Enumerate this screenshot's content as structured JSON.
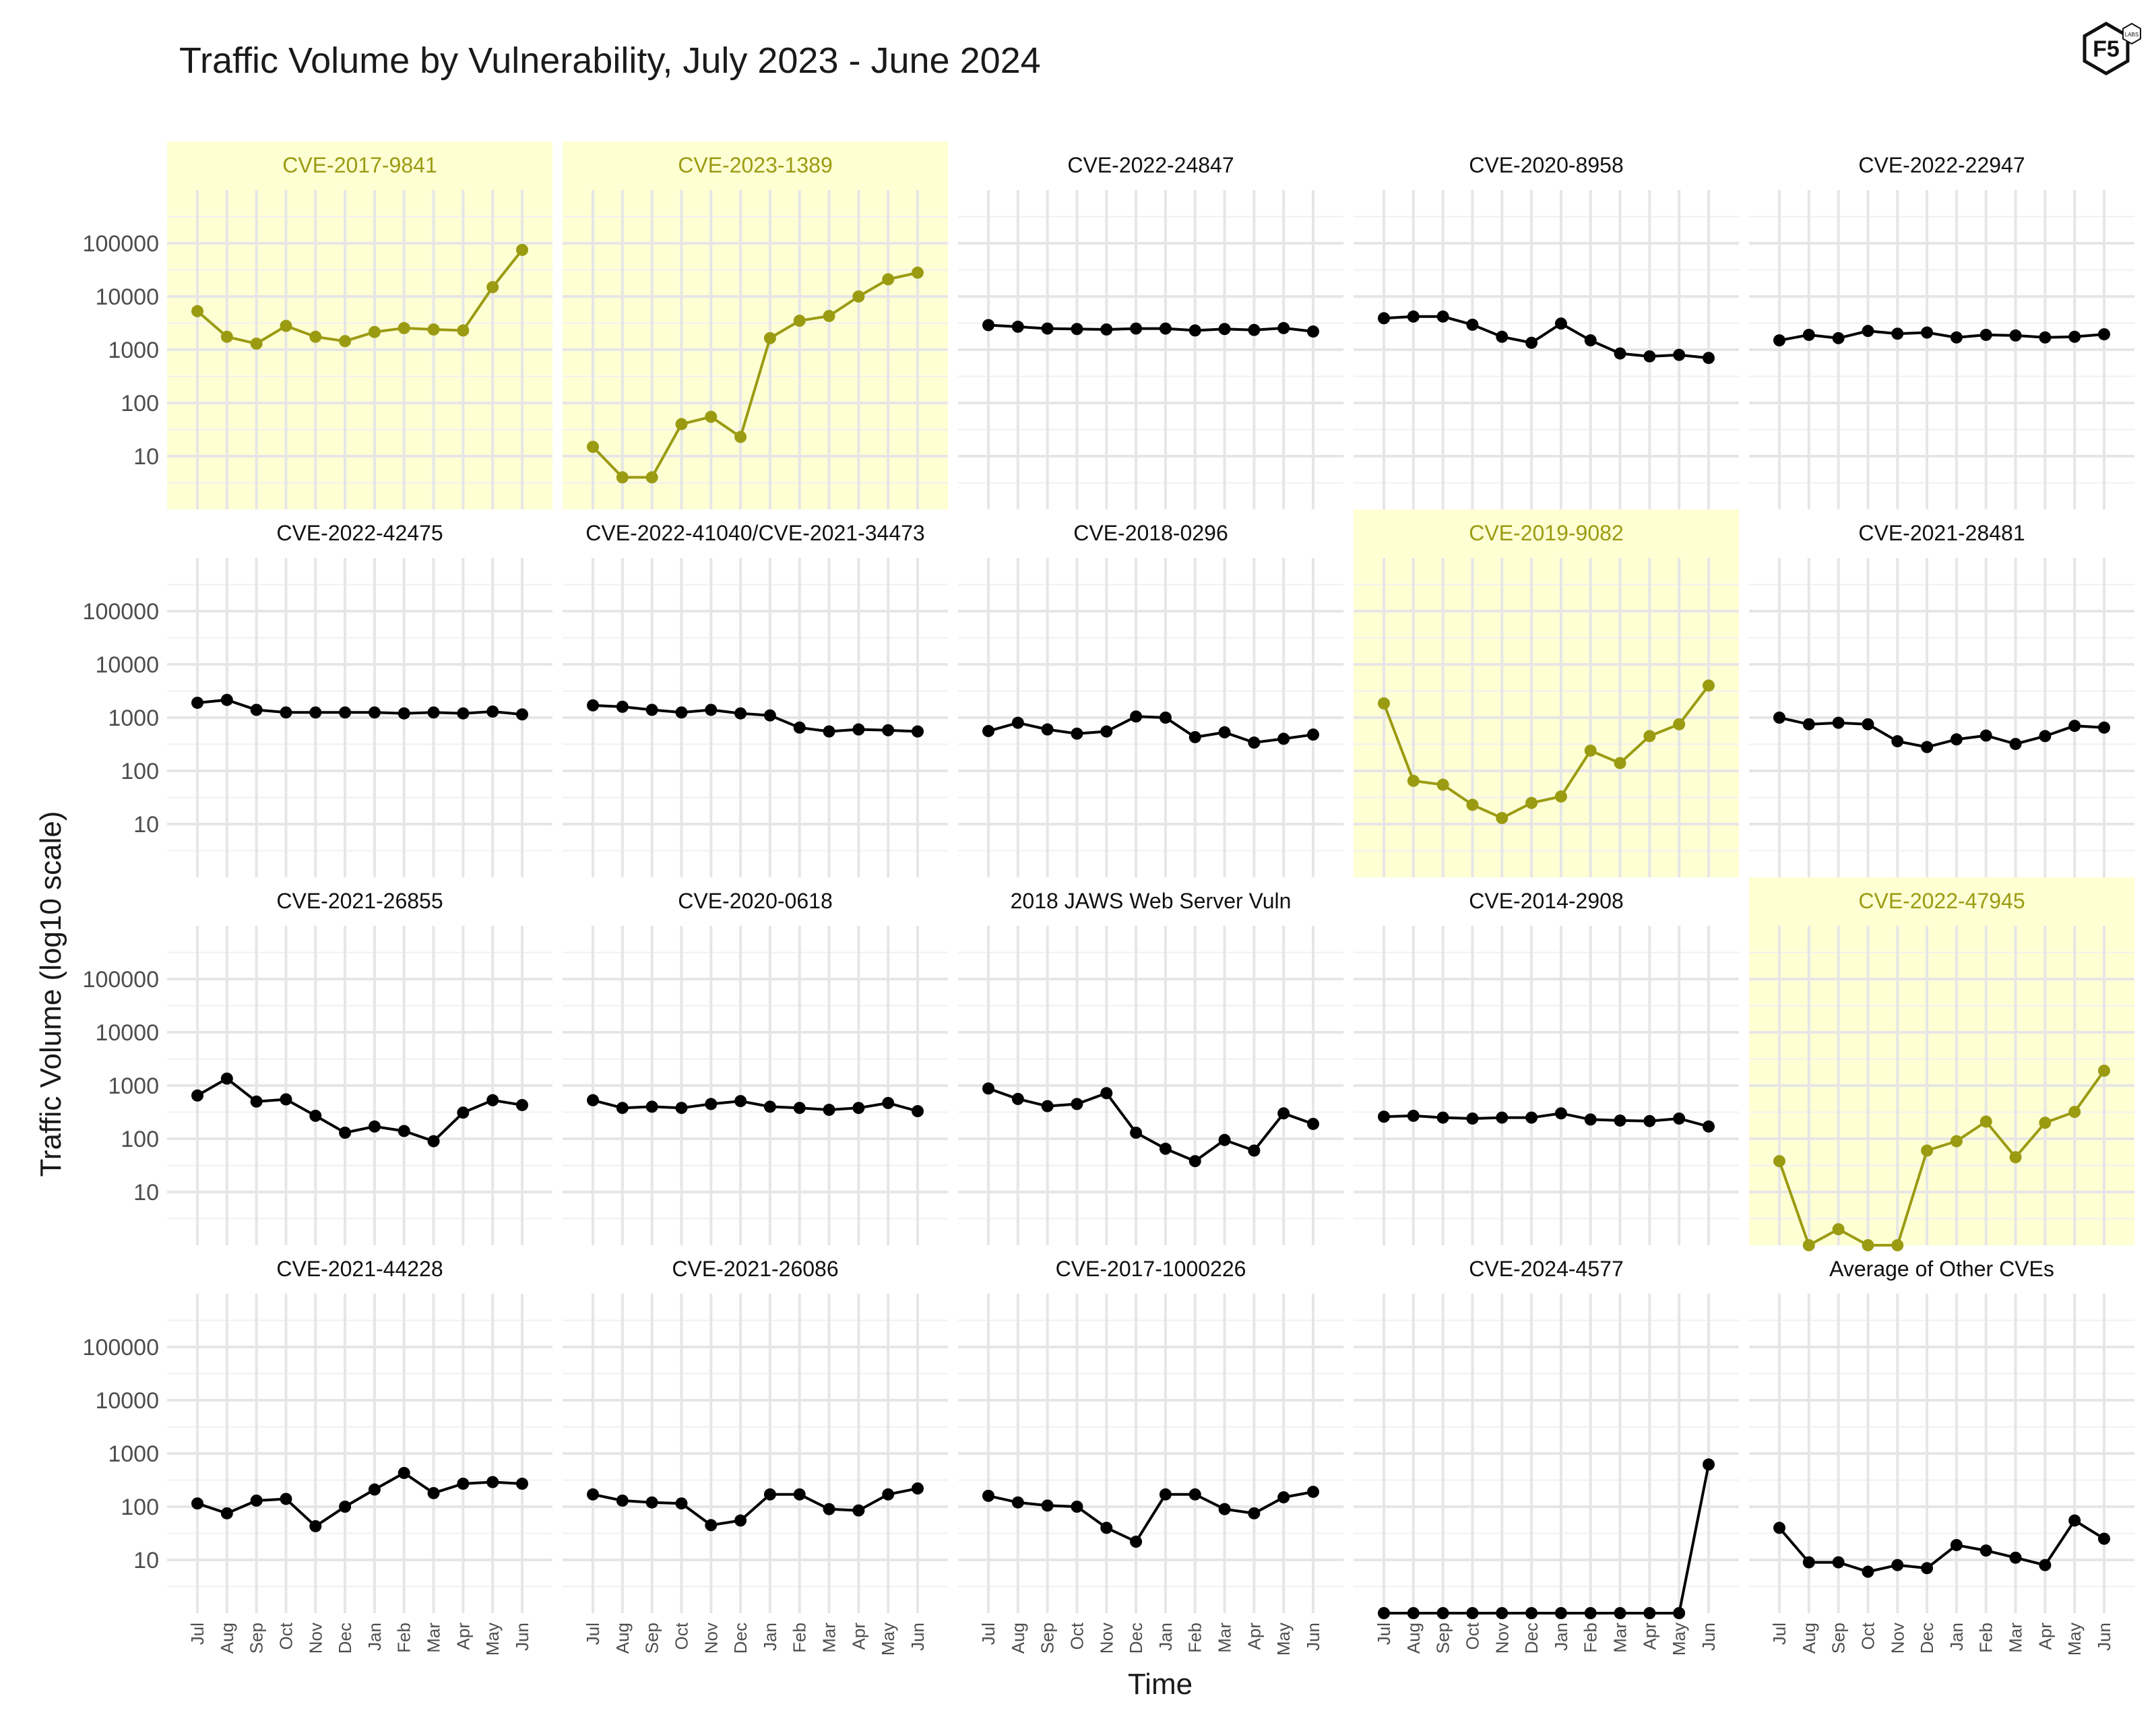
{
  "chart_data": {
    "type": "line",
    "title": "Traffic Volume by Vulnerability, July 2023 - June 2024",
    "xlabel": "Time",
    "ylabel": "Traffic Volume (log10 scale)",
    "yscale": "log10",
    "ylim": [
      1,
      1000000
    ],
    "y_ticks": [
      10,
      100,
      1000,
      10000,
      100000
    ],
    "y_tick_labels": [
      "10",
      "100",
      "1000",
      "10000",
      "100000"
    ],
    "categories": [
      "Jul",
      "Aug",
      "Sep",
      "Oct",
      "Nov",
      "Dec",
      "Jan",
      "Feb",
      "Mar",
      "Apr",
      "May",
      "Jun"
    ],
    "grid": true,
    "colors": {
      "highlight_line": "#9b9b12",
      "highlight_background": "#ffffd4",
      "normal_line": "#000000",
      "title_text": "#111111"
    },
    "logo": "F5 Labs",
    "panels": [
      {
        "name": "CVE-2017-9841",
        "highlight": true,
        "values": [
          5300,
          1750,
          1300,
          2800,
          1750,
          1450,
          2150,
          2550,
          2400,
          2300,
          15000,
          75000
        ]
      },
      {
        "name": "CVE-2023-1389",
        "highlight": true,
        "values": [
          15,
          4,
          4,
          40,
          55,
          23,
          1650,
          3500,
          4300,
          10000,
          21000,
          28000
        ]
      },
      {
        "name": "CVE-2022-24847",
        "highlight": false,
        "values": [
          2900,
          2700,
          2500,
          2450,
          2400,
          2500,
          2500,
          2300,
          2450,
          2350,
          2550,
          2200
        ]
      },
      {
        "name": "CVE-2020-8958",
        "highlight": false,
        "values": [
          3900,
          4200,
          4200,
          2950,
          1750,
          1350,
          3100,
          1500,
          850,
          750,
          800,
          700
        ]
      },
      {
        "name": "CVE-2022-22947",
        "highlight": false,
        "values": [
          1500,
          1900,
          1650,
          2250,
          2000,
          2100,
          1700,
          1900,
          1850,
          1700,
          1750,
          1950
        ]
      },
      {
        "name": "CVE-2022-42475",
        "highlight": false,
        "values": [
          1900,
          2150,
          1400,
          1250,
          1250,
          1250,
          1250,
          1200,
          1250,
          1200,
          1300,
          1150
        ]
      },
      {
        "name": "CVE-2022-41040/CVE-2021-34473",
        "highlight": false,
        "values": [
          1700,
          1600,
          1400,
          1250,
          1400,
          1200,
          1100,
          650,
          550,
          600,
          580,
          550
        ]
      },
      {
        "name": "CVE-2018-0296",
        "highlight": false,
        "values": [
          560,
          800,
          600,
          500,
          550,
          1050,
          1000,
          430,
          530,
          340,
          400,
          480
        ]
      },
      {
        "name": "CVE-2019-9082",
        "highlight": true,
        "values": [
          1850,
          65,
          55,
          23,
          13,
          25,
          33,
          240,
          140,
          450,
          750,
          4000
        ]
      },
      {
        "name": "CVE-2021-28481",
        "highlight": false,
        "values": [
          1000,
          750,
          800,
          750,
          360,
          280,
          390,
          460,
          320,
          450,
          700,
          650
        ]
      },
      {
        "name": "CVE-2021-26855",
        "highlight": false,
        "values": [
          650,
          1350,
          500,
          550,
          270,
          130,
          170,
          140,
          90,
          310,
          530,
          430
        ]
      },
      {
        "name": "CVE-2020-0618",
        "highlight": false,
        "values": [
          530,
          380,
          400,
          380,
          450,
          510,
          400,
          380,
          350,
          380,
          470,
          330
        ]
      },
      {
        "name": "2018 JAWS Web Server Vuln",
        "highlight": false,
        "values": [
          880,
          560,
          410,
          450,
          720,
          130,
          65,
          38,
          95,
          60,
          300,
          190
        ]
      },
      {
        "name": "CVE-2014-2908",
        "highlight": false,
        "values": [
          260,
          270,
          250,
          240,
          250,
          250,
          300,
          230,
          220,
          215,
          240,
          170
        ]
      },
      {
        "name": "CVE-2022-47945",
        "highlight": true,
        "values": [
          38,
          1,
          2,
          1,
          1,
          60,
          90,
          210,
          45,
          200,
          320,
          1900
        ]
      },
      {
        "name": "CVE-2021-44228",
        "highlight": false,
        "values": [
          115,
          75,
          130,
          140,
          43,
          100,
          210,
          430,
          180,
          270,
          290,
          270
        ]
      },
      {
        "name": "CVE-2021-26086",
        "highlight": false,
        "values": [
          170,
          130,
          120,
          115,
          45,
          55,
          170,
          170,
          90,
          85,
          170,
          220
        ]
      },
      {
        "name": "CVE-2017-1000226",
        "highlight": false,
        "values": [
          160,
          120,
          105,
          100,
          40,
          22,
          170,
          170,
          90,
          75,
          150,
          190
        ]
      },
      {
        "name": "CVE-2024-4577",
        "highlight": false,
        "values": [
          1,
          1,
          1,
          1,
          1,
          1,
          1,
          1,
          1,
          1,
          1,
          620
        ]
      },
      {
        "name": "Average of Other CVEs",
        "highlight": false,
        "values": [
          40,
          9,
          9,
          6,
          8,
          7,
          19,
          15,
          11,
          8,
          55,
          25
        ]
      }
    ]
  }
}
